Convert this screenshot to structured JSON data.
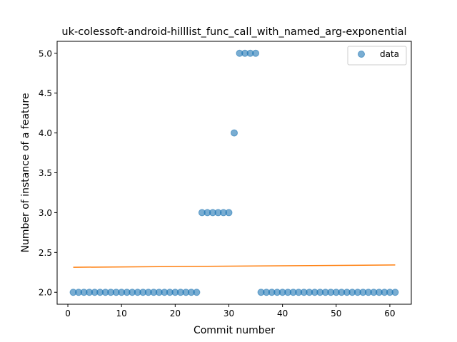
{
  "chart_data": {
    "type": "scatter",
    "title": "uk-colessoft-android-hilllist_func_call_with_named_arg-exponential",
    "xlabel": "Commit number",
    "ylabel": "Number of instance of a feature",
    "xlim": [
      -2.0,
      64.0
    ],
    "ylim": [
      1.85,
      5.15
    ],
    "xticks": [
      0,
      10,
      20,
      30,
      40,
      50,
      60
    ],
    "yticks": [
      2.0,
      2.5,
      3.0,
      3.5,
      4.0,
      4.5,
      5.0
    ],
    "ytick_labels": [
      "2.0",
      "2.5",
      "3.0",
      "3.5",
      "4.0",
      "4.5",
      "5.0"
    ],
    "legend_position": "upper right",
    "series": [
      {
        "name": "data",
        "kind": "scatter",
        "color": "#1f77b4",
        "x": [
          1,
          2,
          3,
          4,
          5,
          6,
          7,
          8,
          9,
          10,
          11,
          12,
          13,
          14,
          15,
          16,
          17,
          18,
          19,
          20,
          21,
          22,
          23,
          24,
          25,
          26,
          27,
          28,
          29,
          30,
          31,
          32,
          33,
          34,
          35,
          36,
          37,
          38,
          39,
          40,
          41,
          42,
          43,
          44,
          45,
          46,
          47,
          48,
          49,
          50,
          51,
          52,
          53,
          54,
          55,
          56,
          57,
          58,
          59,
          60,
          61
        ],
        "y": [
          2,
          2,
          2,
          2,
          2,
          2,
          2,
          2,
          2,
          2,
          2,
          2,
          2,
          2,
          2,
          2,
          2,
          2,
          2,
          2,
          2,
          2,
          2,
          2,
          3,
          3,
          3,
          3,
          3,
          3,
          4,
          5,
          5,
          5,
          5,
          2,
          2,
          2,
          2,
          2,
          2,
          2,
          2,
          2,
          2,
          2,
          2,
          2,
          2,
          2,
          2,
          2,
          2,
          2,
          2,
          2,
          2,
          2,
          2,
          2,
          2
        ]
      },
      {
        "kind": "line",
        "color": "#ff7f0e",
        "x": [
          1,
          61
        ],
        "y": [
          2.314,
          2.343
        ]
      }
    ]
  }
}
